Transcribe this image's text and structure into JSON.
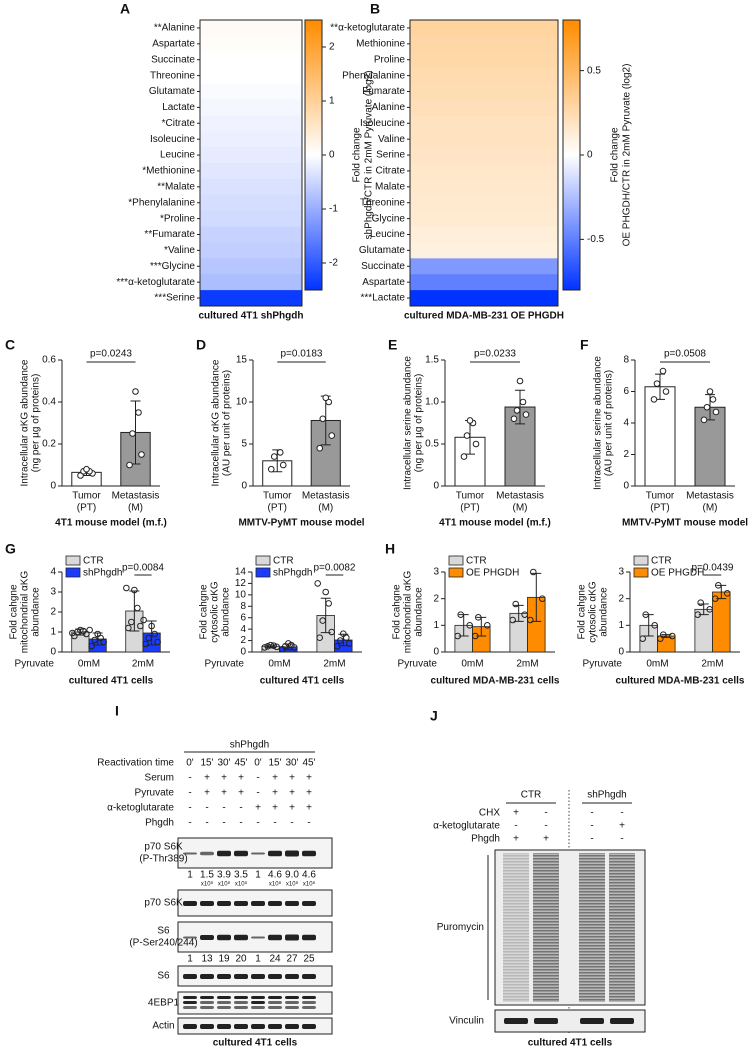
{
  "chart_data": [
    {
      "type": "heatmap",
      "label": "A",
      "categories": [
        "**Alanine",
        "Aspartate",
        "Succinate",
        "Threonine",
        "Glutamate",
        "Lactate",
        "*Citrate",
        "Isoleucine",
        "Leucine",
        "*Methionine",
        "**Malate",
        "*Phenylalanine",
        "*Proline",
        "**Fumarate",
        "*Valine",
        "***Glycine",
        "***α-ketoglutarate",
        "***Serine"
      ],
      "values": [
        0.1,
        0.05,
        0,
        0,
        -0.05,
        -0.1,
        -0.15,
        -0.2,
        -0.25,
        -0.3,
        -0.35,
        -0.4,
        -0.45,
        -0.55,
        -0.6,
        -0.7,
        -0.8,
        -2.4
      ],
      "clim": [
        -2.5,
        2.5
      ],
      "cticks": [
        -2,
        -1,
        0,
        1,
        2
      ],
      "colormap": [
        "#0033ff",
        "#ffffff",
        "#ff8c00"
      ],
      "colorbar_label": [
        "Fold change",
        "shPhgdh/CTR in 2mM Pyruvate (log2)"
      ],
      "xlabel": "cultured 4T1 shPhgdh"
    },
    {
      "type": "heatmap",
      "label": "B",
      "categories": [
        "**α-ketoglutarate",
        "Methionine",
        "Proline",
        "Phenylalanine",
        "Fumarate",
        "Alanine",
        "Isoleucine",
        "Valine",
        "Serine",
        "Citrate",
        "Malate",
        "Threonine",
        "Glycine",
        "Leucine",
        "Glutamate",
        "Succinate",
        "Aspartate",
        "***Lactate"
      ],
      "values": [
        0.3,
        0.28,
        0.27,
        0.25,
        0.24,
        0.22,
        0.2,
        0.2,
        0.18,
        0.17,
        0.16,
        0.15,
        0.14,
        0.12,
        0.1,
        -0.4,
        -0.5,
        -0.8
      ],
      "clim": [
        -0.8,
        0.8
      ],
      "cticks": [
        -0.5,
        0,
        0.5
      ],
      "colormap": [
        "#0033ff",
        "#ffffff",
        "#ff8c00"
      ],
      "colorbar_label": [
        "Fold change",
        "OE PHGDH/CTR in 2mM Pyruvate (log2)"
      ],
      "xlabel": "cultured MDA-MB-231 OE PHGDH"
    },
    {
      "type": "bar",
      "label": "C",
      "ylabel": [
        "Intracellular αKG abundance",
        "(ng per µg of proteins)"
      ],
      "categories": [
        "Tumor",
        "Metastasis"
      ],
      "sublabels": [
        "(PT)",
        "(M)"
      ],
      "values": [
        0.065,
        0.255
      ],
      "errors": [
        0.015,
        0.15
      ],
      "points": [
        [
          0.05,
          0.06,
          0.07,
          0.07,
          0.08
        ],
        [
          0.1,
          0.15,
          0.25,
          0.35,
          0.45
        ]
      ],
      "colors": [
        "#ffffff",
        "#999999"
      ],
      "ylim": [
        0,
        0.6
      ],
      "yticks": [
        0,
        0.2,
        0.4,
        0.6
      ],
      "annotation": "p=0.0243",
      "xlabel": "4T1 mouse model (m.f.)"
    },
    {
      "type": "bar",
      "label": "D",
      "ylabel": [
        "Intracellular αKG abundance",
        "(AU per unit of proteins)"
      ],
      "categories": [
        "Tumor",
        "Metastasis"
      ],
      "sublabels": [
        "(PT)",
        "(M)"
      ],
      "values": [
        3.0,
        7.8
      ],
      "errors": [
        1.3,
        2.9
      ],
      "points": [
        [
          2,
          2.5,
          3.5,
          4
        ],
        [
          4.5,
          6,
          8,
          10,
          10.5
        ]
      ],
      "colors": [
        "#ffffff",
        "#999999"
      ],
      "ylim": [
        0,
        15
      ],
      "yticks": [
        0,
        5,
        10,
        15
      ],
      "annotation": "p=0.0183",
      "xlabel": "MMTV-PyMT mouse model"
    },
    {
      "type": "bar",
      "label": "E",
      "ylabel": [
        "Intracellular serine abundance",
        "(ng per µg of proteins)"
      ],
      "categories": [
        "Tumor",
        "Metastasis"
      ],
      "sublabels": [
        "(PT)",
        "(M)"
      ],
      "values": [
        0.58,
        0.94
      ],
      "errors": [
        0.2,
        0.2
      ],
      "points": [
        [
          0.35,
          0.5,
          0.6,
          0.75,
          0.78
        ],
        [
          0.8,
          0.85,
          0.9,
          1.0,
          1.25
        ]
      ],
      "colors": [
        "#ffffff",
        "#999999"
      ],
      "ylim": [
        0,
        1.5
      ],
      "yticks": [
        0,
        0.5,
        {
          "value": 1,
          "label": "1.0"
        },
        1.5
      ],
      "annotation": "p=0.0233",
      "xlabel": "4T1 mouse model (m.f.)"
    },
    {
      "type": "bar",
      "label": "F",
      "ylabel": [
        "Intracellular serine abundance",
        "(AU per unit of proteins)"
      ],
      "categories": [
        "Tumor",
        "Metastasis"
      ],
      "sublabels": [
        "(PT)",
        "(M)"
      ],
      "values": [
        6.3,
        5.0
      ],
      "errors": [
        0.8,
        0.8
      ],
      "points": [
        [
          5.5,
          6,
          6.5,
          7.3
        ],
        [
          4.2,
          4.7,
          5,
          5.5,
          6
        ]
      ],
      "colors": [
        "#ffffff",
        "#999999"
      ],
      "ylim": [
        0,
        8
      ],
      "yticks": [
        0,
        2,
        4,
        6,
        8
      ],
      "annotation": "p=0.0508",
      "xlabel": "MMTV-PyMT mouse model"
    },
    {
      "type": "grouped_bar",
      "label": "G",
      "ylabel": [
        "Fold cahgne",
        "mitochondrial αKG",
        "abundance"
      ],
      "group_label": "Pyruvate",
      "categories": [
        "0mM",
        "2mM"
      ],
      "ylim": [
        0,
        4
      ],
      "yticks": [
        0,
        1,
        2,
        3,
        4
      ],
      "annotation": "p=0.0084",
      "xlabel": "cultured 4T1 cells",
      "series": [
        {
          "name": "CTR",
          "color": "#d9d9d9",
          "values": [
            1.0,
            2.05
          ],
          "errors": [
            0.15,
            1.0
          ],
          "points": [
            [
              0.8,
              0.9,
              1.0,
              1.05,
              1.1,
              0.95
            ],
            [
              1.2,
              1.3,
              1.5,
              2.2,
              3.1,
              3.2
            ]
          ]
        },
        {
          "name": "shPhgdh",
          "color": "#1a3cff",
          "values": [
            0.65,
            0.95
          ],
          "errors": [
            0.3,
            0.6
          ],
          "points": [
            [
              0.3,
              0.5,
              0.6,
              0.7,
              0.9,
              1.1
            ],
            [
              0.4,
              0.5,
              0.7,
              0.9,
              1.3,
              1.6
            ]
          ]
        }
      ]
    },
    {
      "type": "grouped_bar",
      "ylabel": [
        "Fold cahgne",
        "cytosolic αKG",
        "abundance"
      ],
      "group_label": "Pyruvate",
      "categories": [
        "0mM",
        "2mM"
      ],
      "ylim": [
        0,
        14
      ],
      "yticks": [
        0,
        2,
        4,
        6,
        8,
        10,
        12,
        14
      ],
      "annotation": "p=0.0082",
      "xlabel": "cultured 4T1 cells",
      "series": [
        {
          "name": "CTR",
          "color": "#d9d9d9",
          "values": [
            1.0,
            6.4
          ],
          "errors": [
            0.2,
            3.0
          ],
          "points": [
            [
              0.8,
              0.9,
              1.0,
              1.1,
              1.2
            ],
            [
              2.5,
              3.5,
              5.5,
              8.5,
              10.5,
              12
            ]
          ]
        },
        {
          "name": "shPhgdh",
          "color": "#1a3cff",
          "values": [
            0.9,
            2.1
          ],
          "errors": [
            0.5,
            1.0
          ],
          "points": [
            [
              0.5,
              0.8,
              1.0,
              1.2,
              1.5
            ],
            [
              1,
              1.5,
              2,
              2.5,
              3.2
            ]
          ]
        }
      ]
    },
    {
      "type": "grouped_bar",
      "label": "H",
      "ylabel": [
        "Fold cahgne",
        "mitochondrial αKG",
        "abundance"
      ],
      "group_label": "Pyruvate",
      "categories": [
        "0mM",
        "2mM"
      ],
      "ylim": [
        0,
        3
      ],
      "yticks": [
        0,
        1,
        2,
        3
      ],
      "xlabel": "cultured MDA-MB-231 cells",
      "series": [
        {
          "name": "CTR",
          "color": "#d9d9d9",
          "values": [
            1.0,
            1.45
          ],
          "errors": [
            0.4,
            0.3
          ],
          "points": [
            [
              0.6,
              1.0,
              1.4
            ],
            [
              1.2,
              1.4,
              1.8
            ]
          ]
        },
        {
          "name": "OE PHGDH",
          "color": "#ff8c00",
          "values": [
            0.95,
            2.05
          ],
          "errors": [
            0.35,
            0.9
          ],
          "points": [
            [
              0.6,
              1.0,
              1.3
            ],
            [
              1.2,
              2.0,
              3.0
            ]
          ]
        }
      ]
    },
    {
      "type": "grouped_bar",
      "ylabel": [
        "Fold cahgne",
        "cytosolic αKG",
        "abundance"
      ],
      "group_label": "Pyruvate",
      "categories": [
        "0mM",
        "2mM"
      ],
      "ylim": [
        0,
        3
      ],
      "yticks": [
        0,
        1,
        2,
        3
      ],
      "annotation": "p=0.0439",
      "xlabel": "cultured MDA-MB-231 cells",
      "series": [
        {
          "name": "CTR",
          "color": "#d9d9d9",
          "values": [
            1.0,
            1.6
          ],
          "errors": [
            0.4,
            0.2
          ],
          "points": [
            [
              0.5,
              1.0,
              1.4
            ],
            [
              1.4,
              1.6,
              1.85
            ]
          ]
        },
        {
          "name": "OE PHGDH",
          "color": "#ff8c00",
          "values": [
            0.6,
            2.25
          ],
          "errors": [
            0.05,
            0.25
          ],
          "points": [
            [
              0.5,
              0.6,
              0.65
            ],
            [
              2.0,
              2.2,
              2.5
            ]
          ]
        }
      ]
    }
  ],
  "blots": [
    {
      "label": "I",
      "group_header": "shPhgdh",
      "conditions": [
        {
          "name": "Reactivation time",
          "values": [
            "0'",
            "15'",
            "30'",
            "45'",
            "0'",
            "15'",
            "30'",
            "45'"
          ]
        },
        {
          "name": "Serum",
          "values": [
            "-",
            "+",
            "+",
            "+",
            "-",
            "+",
            "+",
            "+"
          ]
        },
        {
          "name": "Pyruvate",
          "values": [
            "-",
            "+",
            "+",
            "+",
            "-",
            "+",
            "+",
            "+"
          ]
        },
        {
          "name": "α-ketoglutarate",
          "values": [
            "-",
            "-",
            "-",
            "-",
            "+",
            "+",
            "+",
            "+"
          ]
        },
        {
          "name": "Phgdh",
          "values": [
            "-",
            "-",
            "-",
            "-",
            "-",
            "-",
            "-",
            "-"
          ]
        }
      ],
      "rows": [
        {
          "name": [
            "p70 S6K",
            "(P-Thr389)"
          ],
          "quant": [
            "1",
            "1.5",
            "3.9",
            "3.5",
            "1",
            "4.6",
            "9.0",
            "4.6"
          ],
          "quant_exponent": [
            null,
            "x10⁸",
            "x10⁸",
            "x10⁸",
            null,
            "x10⁸",
            "x10⁸",
            "x10⁸"
          ]
        },
        {
          "name": [
            "p70 S6K"
          ]
        },
        {
          "name": [
            "S6",
            "(P-Ser240/244)"
          ],
          "quant": [
            "1",
            "13",
            "19",
            "20",
            "1",
            "24",
            "27",
            "25"
          ]
        },
        {
          "name": [
            "S6"
          ]
        },
        {
          "name": [
            "4EBP1"
          ]
        },
        {
          "name": [
            "Actin"
          ]
        }
      ],
      "caption": "cultured 4T1 cells"
    },
    {
      "label": "J",
      "groups": [
        "CTR",
        "shPhgdh"
      ],
      "conditions": [
        {
          "name": "CHX",
          "values": [
            "+",
            "-",
            "-",
            "-"
          ]
        },
        {
          "name": "α-ketoglutarate",
          "values": [
            "-",
            "-",
            "-",
            "+"
          ]
        },
        {
          "name": "Phgdh",
          "values": [
            "+",
            "+",
            "-",
            "-"
          ]
        }
      ],
      "rows": [
        {
          "name": [
            "Puromycin"
          ]
        },
        {
          "name": [
            "Vinculin"
          ]
        }
      ],
      "caption": "cultured 4T1 cells"
    }
  ]
}
